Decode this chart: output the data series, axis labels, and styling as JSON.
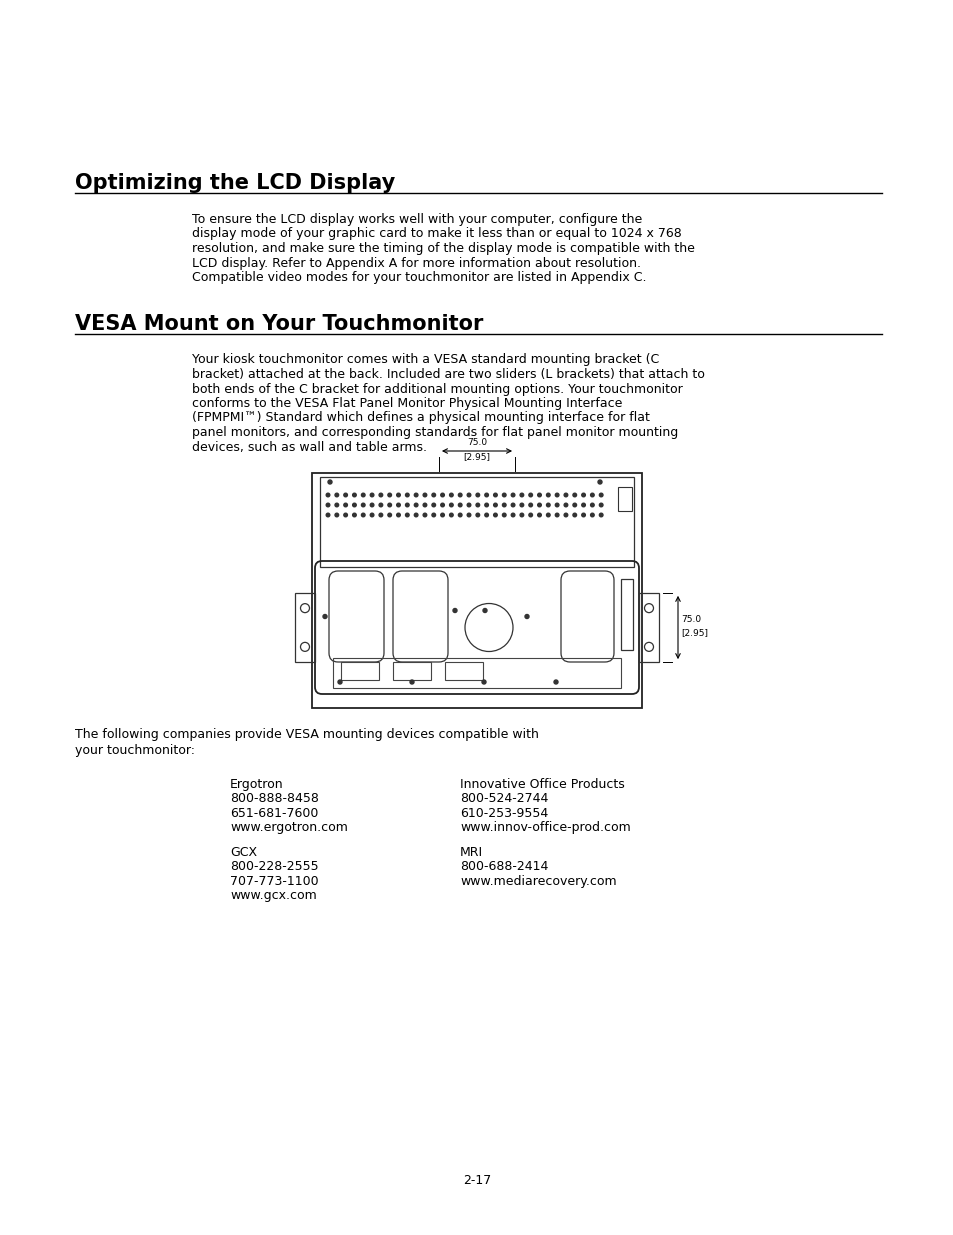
{
  "bg_color": "#ffffff",
  "title1": "Optimizing the LCD Display",
  "title2": "VESA Mount on Your Touchmonitor",
  "para1": "To ensure the LCD display works well with your computer, configure the\ndisplay mode of your graphic card to make it less than or equal to 1024 x 768\nresolution, and make sure the timing of the display mode is compatible with the\nLCD display. Refer to Appendix A for more information about resolution.\nCompatible video modes for your touchmonitor are listed in Appendix C.",
  "para2": "Your kiosk touchmonitor comes with a VESA standard mounting bracket (C\nbracket) attached at the back. Included are two sliders (L brackets) that attach to\nboth ends of the C bracket for additional mounting options. Your touchmonitor\nconforms to the VESA Flat Panel Monitor Physical Mounting Interface\n(FPMPMI™) Standard which defines a physical mounting interface for flat\npanel monitors, and corresponding standards for flat panel monitor mounting\ndevices, such as wall and table arms.",
  "para3": "The following companies provide VESA mounting devices compatible with\nyour touchmonitor:",
  "companies_left": [
    "Ergotron",
    "800-888-8458",
    "651-681-7600",
    "www.ergotron.com",
    "",
    "GCX",
    "800-228-2555",
    "707-773-1100",
    "www.gcx.com"
  ],
  "companies_right": [
    "Innovative Office Products",
    "800-524-2744",
    "610-253-9554",
    "www.innov-office-prod.com",
    "",
    "MRI",
    "800-688-2414",
    "www.mediarecovery.com"
  ],
  "page_num": "2-17",
  "title1_fontsize": 15,
  "title2_fontsize": 15,
  "body_fontsize": 9.0,
  "company_fontsize": 9.0
}
